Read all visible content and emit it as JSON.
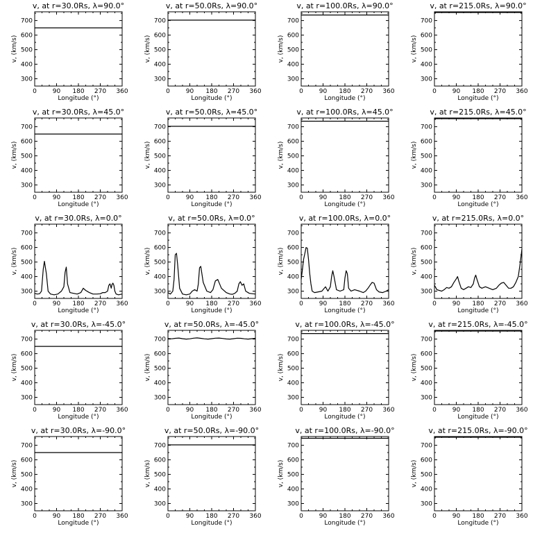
{
  "figure": {
    "xlabel": "Longitude (°)",
    "ylabel": "v, (km/s)",
    "xlim": [
      0,
      360
    ],
    "ylim": [
      250,
      760
    ],
    "xticks": [
      0,
      90,
      180,
      270,
      360
    ],
    "yticks": [
      300,
      400,
      500,
      600,
      700
    ],
    "line_color": "#000000",
    "grid": false
  },
  "chart_data": [
    {
      "type": "line",
      "title": "v, at r=30.0Rs, λ=90.0°",
      "x": [
        0,
        360
      ],
      "y": [
        650,
        650
      ]
    },
    {
      "type": "line",
      "title": "v, at r=50.0Rs, λ=90.0°",
      "x": [
        0,
        360
      ],
      "y": [
        703,
        703
      ]
    },
    {
      "type": "line",
      "title": "v, at r=100.0Rs, λ=90.0°",
      "x": [
        0,
        360
      ],
      "y": [
        738,
        738
      ]
    },
    {
      "type": "line",
      "title": "v, at r=215.0Rs, λ=90.0°",
      "x": [
        0,
        360
      ],
      "y": [
        755,
        755
      ]
    },
    {
      "type": "line",
      "title": "v, at r=30.0Rs, λ=45.0°",
      "x": [
        0,
        360
      ],
      "y": [
        650,
        650
      ]
    },
    {
      "type": "line",
      "title": "v, at r=50.0Rs, λ=45.0°",
      "x": [
        0,
        360
      ],
      "y": [
        703,
        703
      ]
    },
    {
      "type": "line",
      "title": "v, at r=100.0Rs, λ=45.0°",
      "x": [
        0,
        360
      ],
      "y": [
        738,
        738
      ]
    },
    {
      "type": "line",
      "title": "v, at r=215.0Rs, λ=45.0°",
      "x": [
        0,
        360
      ],
      "y": [
        755,
        755
      ]
    },
    {
      "type": "line",
      "title": "v, at r=30.0Rs, λ=0.0°",
      "x": [
        0,
        10,
        20,
        28,
        35,
        40,
        48,
        55,
        65,
        80,
        95,
        110,
        120,
        125,
        130,
        135,
        145,
        160,
        175,
        190,
        200,
        210,
        225,
        240,
        255,
        270,
        280,
        290,
        300,
        305,
        310,
        315,
        318,
        322,
        326,
        330,
        335,
        345,
        360
      ],
      "y": [
        285,
        280,
        282,
        300,
        450,
        505,
        420,
        300,
        280,
        275,
        280,
        300,
        330,
        430,
        465,
        350,
        290,
        285,
        280,
        290,
        320,
        305,
        290,
        280,
        280,
        282,
        290,
        290,
        300,
        340,
        350,
        320,
        345,
        355,
        340,
        300,
        280,
        275,
        280
      ]
    },
    {
      "type": "line",
      "title": "v, at r=50.0Rs, λ=0.0°",
      "x": [
        0,
        10,
        20,
        25,
        30,
        35,
        40,
        48,
        60,
        75,
        90,
        100,
        110,
        120,
        125,
        130,
        135,
        145,
        160,
        175,
        185,
        195,
        205,
        220,
        240,
        255,
        265,
        275,
        285,
        292,
        298,
        305,
        312,
        320,
        335,
        350,
        360
      ],
      "y": [
        290,
        280,
        300,
        380,
        550,
        560,
        480,
        320,
        280,
        275,
        280,
        300,
        310,
        300,
        350,
        460,
        470,
        360,
        300,
        290,
        310,
        370,
        380,
        320,
        290,
        280,
        278,
        285,
        300,
        350,
        365,
        340,
        350,
        300,
        285,
        282,
        280
      ]
    },
    {
      "type": "line",
      "title": "v, at r=100.0Rs, λ=0.0°",
      "x": [
        0,
        5,
        10,
        15,
        20,
        25,
        30,
        35,
        40,
        45,
        55,
        70,
        85,
        95,
        100,
        110,
        120,
        125,
        130,
        135,
        145,
        160,
        175,
        180,
        185,
        190,
        195,
        205,
        220,
        240,
        255,
        265,
        275,
        285,
        292,
        300,
        310,
        320,
        335,
        350,
        360
      ],
      "y": [
        380,
        450,
        520,
        560,
        600,
        595,
        520,
        420,
        350,
        300,
        290,
        295,
        300,
        320,
        330,
        300,
        330,
        400,
        440,
        400,
        310,
        300,
        310,
        390,
        440,
        420,
        320,
        300,
        310,
        300,
        290,
        300,
        320,
        345,
        360,
        355,
        310,
        295,
        290,
        300,
        310
      ]
    },
    {
      "type": "line",
      "title": "v, at r=215.0Rs, λ=0.0°",
      "x": [
        0,
        10,
        20,
        30,
        40,
        50,
        60,
        70,
        80,
        90,
        95,
        100,
        110,
        120,
        130,
        140,
        150,
        160,
        165,
        170,
        175,
        185,
        195,
        210,
        225,
        240,
        255,
        265,
        275,
        285,
        295,
        305,
        315,
        325,
        335,
        345,
        352,
        358,
        360
      ],
      "y": [
        340,
        310,
        305,
        300,
        310,
        325,
        320,
        330,
        360,
        385,
        400,
        370,
        320,
        310,
        320,
        330,
        325,
        350,
        390,
        410,
        380,
        330,
        320,
        330,
        320,
        310,
        320,
        340,
        355,
        360,
        340,
        320,
        320,
        330,
        360,
        400,
        480,
        560,
        590
      ]
    },
    {
      "type": "line",
      "title": "v, at r=30.0Rs, λ=-45.0°",
      "x": [
        0,
        360
      ],
      "y": [
        650,
        650
      ]
    },
    {
      "type": "line",
      "title": "v, at r=50.0Rs, λ=-45.0°",
      "x": [
        0,
        15,
        30,
        45,
        60,
        75,
        90,
        105,
        120,
        135,
        150,
        165,
        180,
        195,
        210,
        225,
        240,
        255,
        270,
        285,
        300,
        315,
        330,
        345,
        360
      ],
      "y": [
        704,
        702,
        705,
        707,
        703,
        700,
        702,
        706,
        708,
        705,
        702,
        700,
        703,
        706,
        707,
        704,
        701,
        700,
        703,
        706,
        705,
        702,
        700,
        703,
        705
      ]
    },
    {
      "type": "line",
      "title": "v, at r=100.0Rs, λ=-45.0°",
      "x": [
        0,
        360
      ],
      "y": [
        738,
        738
      ]
    },
    {
      "type": "line",
      "title": "v, at r=215.0Rs, λ=-45.0°",
      "x": [
        0,
        360
      ],
      "y": [
        755,
        755
      ]
    },
    {
      "type": "line",
      "title": "v, at r=30.0Rs, λ=-90.0°",
      "x": [
        0,
        360
      ],
      "y": [
        650,
        650
      ]
    },
    {
      "type": "line",
      "title": "v, at r=50.0Rs, λ=-90.0°",
      "x": [
        0,
        360
      ],
      "y": [
        703,
        703
      ]
    },
    {
      "type": "line",
      "title": "v, at r=100.0Rs, λ=-90.0°",
      "x": [
        0,
        360
      ],
      "y": [
        748,
        748
      ]
    },
    {
      "type": "line",
      "title": "v, at r=215.0Rs, λ=-90.0°",
      "x": [
        0,
        360
      ],
      "y": [
        755,
        755
      ]
    }
  ]
}
